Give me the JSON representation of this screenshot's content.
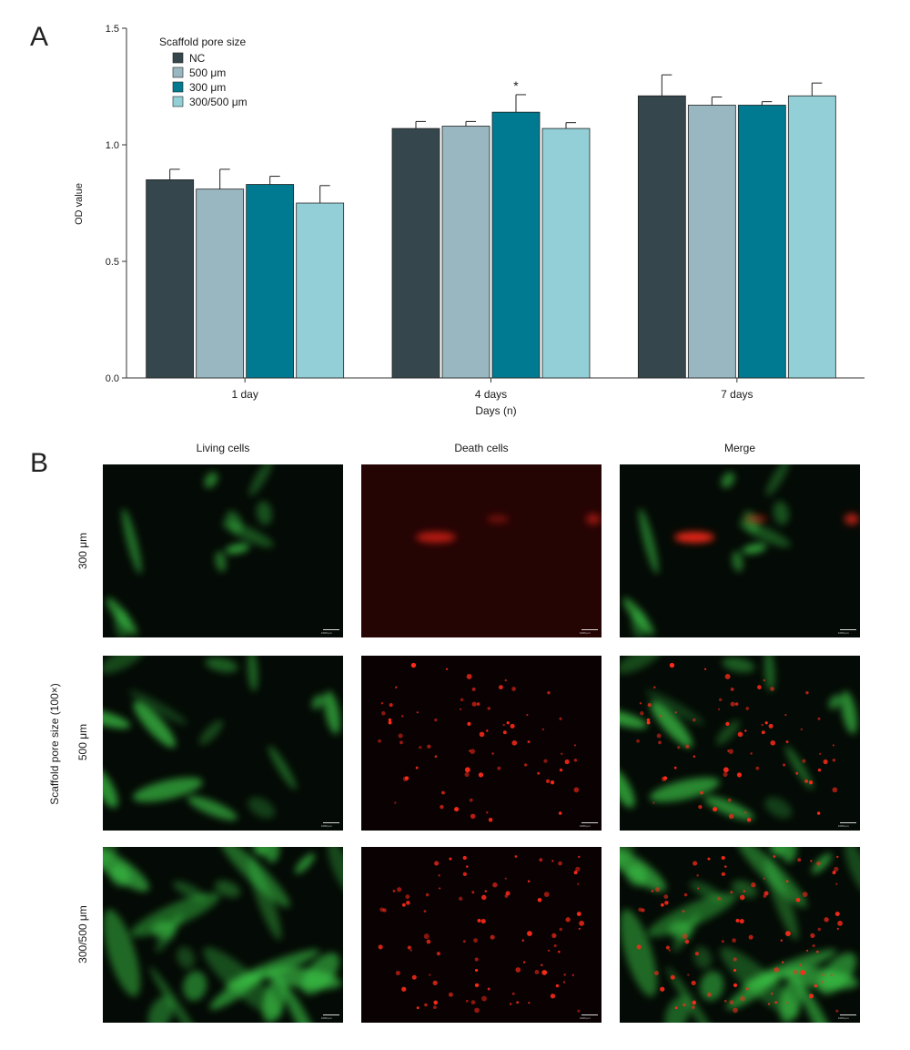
{
  "panel_a": {
    "letter": "A",
    "chart_data": {
      "type": "bar",
      "title": "",
      "xlabel": "Days (n)",
      "ylabel": "OD value",
      "ylim": [
        0,
        1.5
      ],
      "yticks": [
        "0.0",
        "0.5",
        "1.0",
        "1.5"
      ],
      "categories": [
        "1 day",
        "4 days",
        "7 days"
      ],
      "legend_title": "Scaffold pore size",
      "legend_position": "top-left",
      "grid": false,
      "series": [
        {
          "name": "NC",
          "color": "#35464c",
          "values": [
            0.85,
            1.07,
            1.21
          ],
          "errors": [
            0.045,
            0.03,
            0.09
          ]
        },
        {
          "name": "500 μm",
          "color": "#99b7c0",
          "values": [
            0.81,
            1.08,
            1.17
          ],
          "errors": [
            0.085,
            0.02,
            0.035
          ]
        },
        {
          "name": "300 μm",
          "color": "#007a90",
          "values": [
            0.83,
            1.14,
            1.17
          ],
          "errors": [
            0.035,
            0.075,
            0.015
          ]
        },
        {
          "name": "300/500 μm",
          "color": "#92cfd6",
          "values": [
            0.75,
            1.07,
            1.21
          ],
          "errors": [
            0.075,
            0.025,
            0.055
          ]
        }
      ],
      "annotations": [
        {
          "text": "*",
          "category": "4 days",
          "series": "300 μm"
        }
      ]
    }
  },
  "panel_b": {
    "letter": "B",
    "columns": [
      "Living cells",
      "Death cells",
      "Merge"
    ],
    "rows": [
      "300 μm",
      "500 μm",
      "300/500 μm"
    ],
    "group_label": "Scaffold pore size (100×)",
    "scale_bar_label": "1000 μm",
    "channel_colors": {
      "living": "#3fd04a",
      "death": "#ff2a1a"
    }
  }
}
